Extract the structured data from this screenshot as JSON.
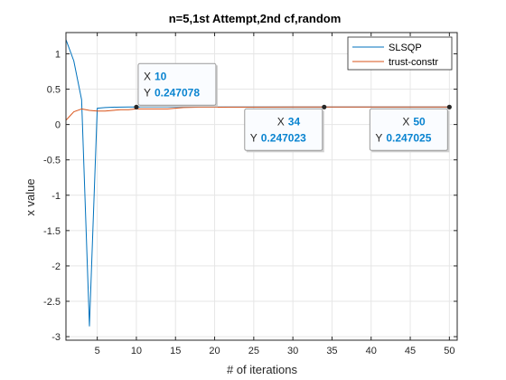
{
  "chart_data": {
    "type": "line",
    "title": "n=5,1st Attempt,2nd cf,random",
    "xlabel": "# of iterations",
    "ylabel": "x value",
    "xlim": [
      1,
      51
    ],
    "ylim": [
      -3.05,
      1.3
    ],
    "xticks": [
      5,
      10,
      15,
      20,
      25,
      30,
      35,
      40,
      45,
      50
    ],
    "xtick_labels": [
      "5",
      "10",
      "15",
      "20",
      "25",
      "30",
      "35",
      "40",
      "45",
      "50"
    ],
    "yticks": [
      1,
      0.5,
      0,
      -0.5,
      -1,
      -1.5,
      -2,
      -2.5,
      -3
    ],
    "ytick_labels": [
      "1",
      "0.5",
      "0",
      "-0.5",
      "-1",
      "-1.5",
      "-2",
      "-2.5",
      "-3"
    ],
    "grid": true,
    "legend_position": "top-right",
    "series": [
      {
        "name": "SLSQP",
        "color": "#0072BD",
        "x": [
          1,
          2,
          3,
          4,
          5,
          6,
          7,
          8,
          9,
          10,
          15,
          20,
          25,
          30,
          34,
          40,
          45,
          50
        ],
        "y": [
          1.2,
          0.9,
          0.35,
          -2.85,
          0.23,
          0.24,
          0.245,
          0.246,
          0.247,
          0.247078,
          0.247,
          0.247,
          0.247,
          0.247,
          0.247023,
          0.247,
          0.247,
          0.247025
        ]
      },
      {
        "name": "trust-constr",
        "color": "#D95319",
        "x": [
          1,
          2,
          3,
          4,
          5,
          6,
          7,
          8,
          9,
          10,
          12,
          14,
          16,
          18,
          20,
          25,
          30,
          34,
          40,
          45,
          50
        ],
        "y": [
          0.06,
          0.18,
          0.22,
          0.2,
          0.19,
          0.19,
          0.2,
          0.21,
          0.21,
          0.22,
          0.22,
          0.22,
          0.24,
          0.245,
          0.245,
          0.246,
          0.247,
          0.247,
          0.247,
          0.247,
          0.247
        ]
      }
    ],
    "datatips": [
      {
        "x_label": "X",
        "x_value": "10",
        "y_label": "Y",
        "y_value": "0.247078",
        "x": 10,
        "y": 0.247078,
        "placement": "above-right"
      },
      {
        "x_label": "X",
        "x_value": "34",
        "y_label": "Y",
        "y_value": "0.247023",
        "x": 34,
        "y": 0.247023,
        "placement": "below-left"
      },
      {
        "x_label": "X",
        "x_value": "50",
        "y_label": "Y",
        "y_value": "0.247025",
        "x": 50,
        "y": 0.247025,
        "placement": "below-left"
      }
    ]
  }
}
